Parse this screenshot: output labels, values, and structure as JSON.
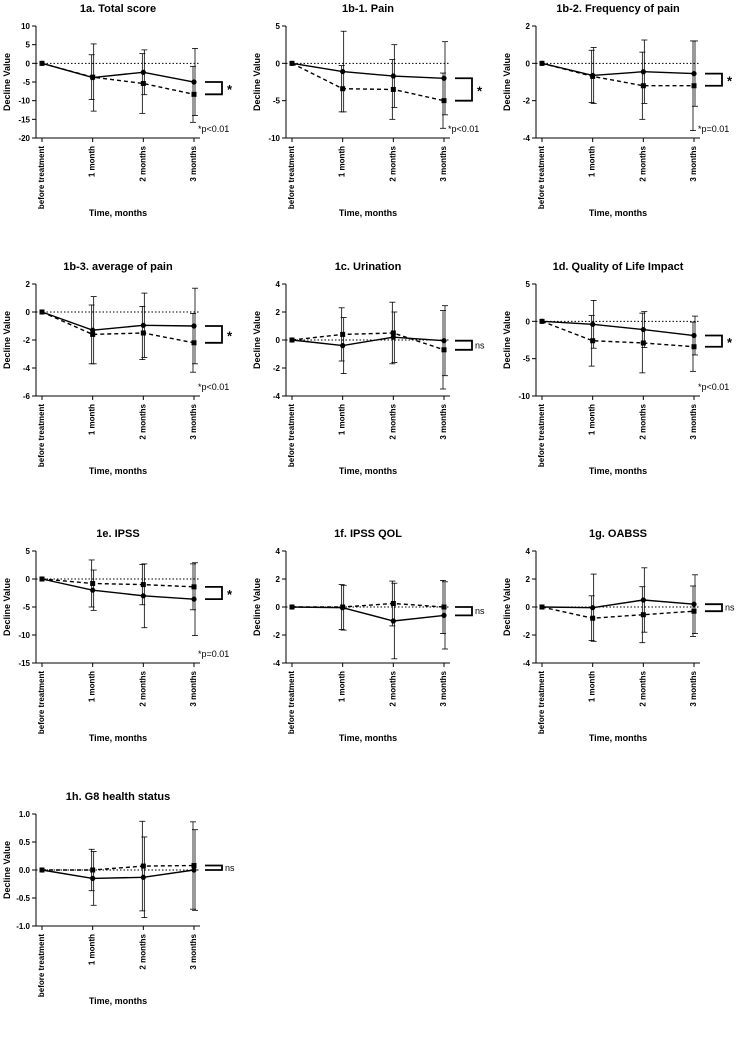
{
  "figure": {
    "x_categories": [
      "before treatment",
      "1 month",
      "2 months",
      "3 months"
    ],
    "xlabel": "Time, months",
    "ylabel": "Decline Value"
  },
  "chart_data": [
    {
      "type": "line",
      "title": "1a. Total score",
      "xlabel": "Time, months",
      "ylabel": "Decline Value",
      "categories": [
        "before treatment",
        "1 month",
        "2 months",
        "3 months"
      ],
      "ylim": [
        -20,
        10
      ],
      "yticks": [
        10,
        5,
        0,
        -5,
        -10,
        -15,
        -20
      ],
      "reference_line": 0,
      "series": [
        {
          "style": "solid",
          "marker": "circle",
          "values": [
            0,
            -3.8,
            -2.4,
            -5.0
          ],
          "errors": [
            0,
            9,
            6,
            9
          ]
        },
        {
          "style": "dashed",
          "marker": "square",
          "values": [
            0,
            -3.7,
            -5.4,
            -8.3
          ],
          "errors": [
            0,
            6,
            8,
            7.5
          ]
        }
      ],
      "significance": "*",
      "annotation": "*p<0.01"
    },
    {
      "type": "line",
      "title": "1b-1. Pain",
      "xlabel": "Time, months",
      "ylabel": "Decline Value",
      "categories": [
        "before treatment",
        "1 month",
        "2 months",
        "3 months"
      ],
      "ylim": [
        -10,
        5
      ],
      "yticks": [
        5,
        0,
        -5,
        -10
      ],
      "reference_line": 0,
      "series": [
        {
          "style": "solid",
          "marker": "circle",
          "values": [
            0,
            -1.1,
            -1.7,
            -2.0
          ],
          "errors": [
            0,
            5.4,
            4.2,
            4.9
          ]
        },
        {
          "style": "dashed",
          "marker": "square",
          "values": [
            0,
            -3.4,
            -3.5,
            -5.0
          ],
          "errors": [
            0,
            3.1,
            4.0,
            3.7
          ]
        }
      ],
      "significance": "*",
      "annotation": "*p<0.01"
    },
    {
      "type": "line",
      "title": "1b-2. Frequency of pain",
      "xlabel": "Time, months",
      "ylabel": "Decline Value",
      "categories": [
        "before treatment",
        "1 month",
        "2 months",
        "3 months"
      ],
      "ylim": [
        -4,
        2
      ],
      "yticks": [
        2,
        0,
        -2,
        -4
      ],
      "reference_line": 0,
      "series": [
        {
          "style": "solid",
          "marker": "circle",
          "values": [
            0,
            -0.65,
            -0.45,
            -0.55
          ],
          "errors": [
            0,
            1.5,
            1.7,
            1.75
          ]
        },
        {
          "style": "dashed",
          "marker": "square",
          "values": [
            0,
            -0.7,
            -1.2,
            -1.2
          ],
          "errors": [
            0,
            1.4,
            1.8,
            2.4
          ]
        }
      ],
      "significance": "*",
      "annotation": "*p=0.01"
    },
    {
      "type": "line",
      "title": "1b-3. average of pain",
      "xlabel": "Time, months",
      "ylabel": "Decline Value",
      "categories": [
        "before treatment",
        "1 month",
        "2 months",
        "3 months"
      ],
      "ylim": [
        -6,
        2
      ],
      "yticks": [
        2,
        0,
        -2,
        -4,
        -6
      ],
      "reference_line": 0,
      "series": [
        {
          "style": "solid",
          "marker": "circle",
          "values": [
            0,
            -1.3,
            -0.95,
            -1.0
          ],
          "errors": [
            0,
            2.4,
            2.3,
            2.7
          ]
        },
        {
          "style": "dashed",
          "marker": "square",
          "values": [
            0,
            -1.6,
            -1.5,
            -2.2
          ],
          "errors": [
            0,
            2.1,
            1.9,
            2.1
          ]
        }
      ],
      "significance": "*",
      "annotation": "*p<0.01"
    },
    {
      "type": "line",
      "title": "1c. Urination",
      "xlabel": "Time, months",
      "ylabel": "Decline Value",
      "categories": [
        "before treatment",
        "1 month",
        "2 months",
        "3 months"
      ],
      "ylim": [
        -4,
        4
      ],
      "yticks": [
        4,
        2,
        0,
        -2,
        -4
      ],
      "reference_line": 0,
      "series": [
        {
          "style": "solid",
          "marker": "circle",
          "values": [
            0,
            -0.4,
            0.2,
            -0.05
          ],
          "errors": [
            0,
            2.0,
            1.8,
            2.5
          ]
        },
        {
          "style": "dashed",
          "marker": "square",
          "values": [
            0,
            0.4,
            0.5,
            -0.7
          ],
          "errors": [
            0,
            1.9,
            2.2,
            2.8
          ]
        }
      ],
      "significance": "ns",
      "annotation": ""
    },
    {
      "type": "line",
      "title": "1d. Quality of Life Impact",
      "xlabel": "Time, months",
      "ylabel": "Decline Value",
      "categories": [
        "before treatment",
        "1 month",
        "2 months",
        "3 months"
      ],
      "ylim": [
        -10,
        5
      ],
      "yticks": [
        5,
        0,
        -5,
        -10
      ],
      "reference_line": 0,
      "series": [
        {
          "style": "solid",
          "marker": "circle",
          "values": [
            0,
            -0.4,
            -1.1,
            -1.9
          ],
          "errors": [
            0,
            3.2,
            2.4,
            2.6
          ]
        },
        {
          "style": "dashed",
          "marker": "square",
          "values": [
            0,
            -2.6,
            -2.9,
            -3.4
          ],
          "errors": [
            0,
            3.4,
            4.0,
            3.3
          ]
        }
      ],
      "significance": "*",
      "annotation": "*p<0.01"
    },
    {
      "type": "line",
      "title": "1e. IPSS",
      "xlabel": "Time, months",
      "ylabel": "Decline Value",
      "categories": [
        "before treatment",
        "1 month",
        "2 months",
        "3 months"
      ],
      "ylim": [
        -15,
        5
      ],
      "yticks": [
        5,
        0,
        -5,
        -10,
        -15
      ],
      "reference_line": 0,
      "series": [
        {
          "style": "solid",
          "marker": "circle",
          "values": [
            0,
            -2.0,
            -3.0,
            -3.6
          ],
          "errors": [
            0,
            3.6,
            5.7,
            6.5
          ]
        },
        {
          "style": "dashed",
          "marker": "square",
          "values": [
            0,
            -0.8,
            -1.0,
            -1.4
          ],
          "errors": [
            0,
            4.2,
            3.6,
            4.1
          ]
        }
      ],
      "significance": "*",
      "annotation": "*p=0.01"
    },
    {
      "type": "line",
      "title": "1f. IPSS QOL",
      "xlabel": "Time, months",
      "ylabel": "Decline Value",
      "categories": [
        "before treatment",
        "1 month",
        "2 months",
        "3 months"
      ],
      "ylim": [
        -4,
        4
      ],
      "yticks": [
        4,
        2,
        0,
        -2,
        -4
      ],
      "reference_line": 0,
      "series": [
        {
          "style": "solid",
          "marker": "circle",
          "values": [
            0,
            -0.05,
            -1.0,
            -0.6
          ],
          "errors": [
            0,
            1.6,
            2.7,
            2.4
          ]
        },
        {
          "style": "dashed",
          "marker": "square",
          "values": [
            0,
            0.0,
            0.25,
            0.0
          ],
          "errors": [
            0,
            1.6,
            1.6,
            1.9
          ]
        }
      ],
      "significance": "ns",
      "annotation": ""
    },
    {
      "type": "line",
      "title": "1g. OABSS",
      "xlabel": "Time, months",
      "ylabel": "Decline Value",
      "categories": [
        "before treatment",
        "1 month",
        "2 months",
        "3 months"
      ],
      "ylim": [
        -4,
        4
      ],
      "yticks": [
        4,
        2,
        0,
        -2,
        -4
      ],
      "reference_line": 0,
      "series": [
        {
          "style": "solid",
          "marker": "circle",
          "values": [
            0,
            -0.05,
            0.5,
            0.2
          ],
          "errors": [
            0,
            2.4,
            2.3,
            2.1
          ]
        },
        {
          "style": "dashed",
          "marker": "square",
          "values": [
            0,
            -0.8,
            -0.55,
            -0.3
          ],
          "errors": [
            0,
            1.6,
            2.0,
            1.8
          ]
        }
      ],
      "significance": "ns",
      "annotation": ""
    },
    {
      "type": "line",
      "title": "1h. G8 health status",
      "xlabel": "Time, months",
      "ylabel": "Decline Value",
      "categories": [
        "before treatment",
        "1 month",
        "2 months",
        "3 months"
      ],
      "ylim": [
        -1.0,
        1.0
      ],
      "yticks": [
        1.0,
        0.5,
        0.0,
        -0.5,
        -1.0
      ],
      "ytick_labels": [
        "1.0",
        "0.5",
        "0.0",
        "-0.5",
        "-1.0"
      ],
      "reference_line": 0,
      "series": [
        {
          "style": "solid",
          "marker": "circle",
          "values": [
            0,
            -0.15,
            -0.13,
            0.0
          ],
          "errors": [
            0,
            0.48,
            0.72,
            0.72
          ]
        },
        {
          "style": "dashed",
          "marker": "square",
          "values": [
            0,
            0.0,
            0.07,
            0.08
          ],
          "errors": [
            0,
            0.37,
            0.8,
            0.78
          ]
        }
      ],
      "significance": "ns",
      "annotation": ""
    }
  ]
}
